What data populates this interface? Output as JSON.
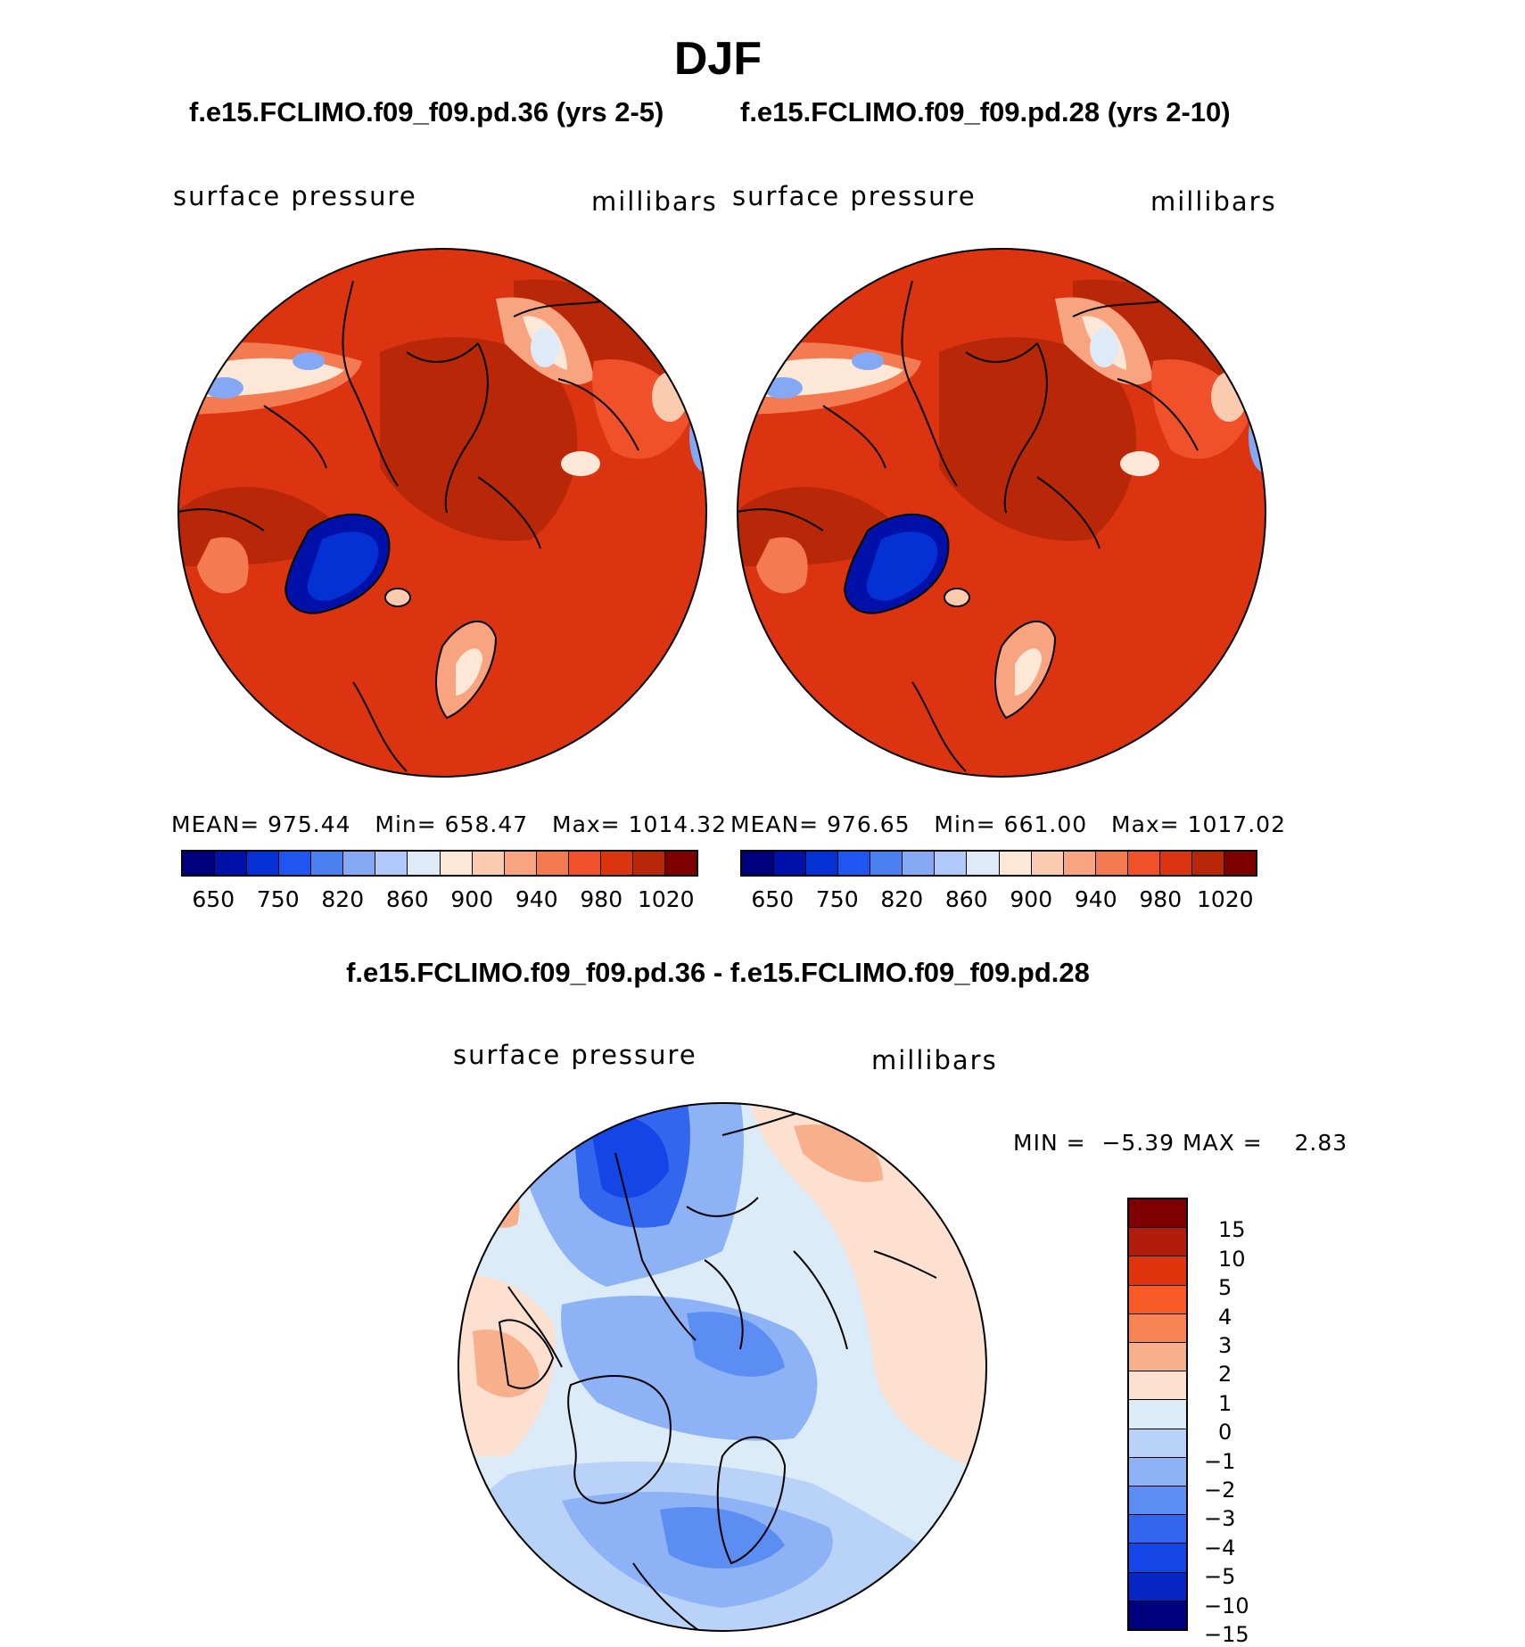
{
  "page": {
    "main_title": "DJF"
  },
  "panels": [
    {
      "case_title": "f.e15.FCLIMO.f09_f09.pd.36 (yrs 2-5)",
      "variable": "surface pressure",
      "units": "millibars",
      "stats": {
        "mean_label": "MEAN=",
        "mean": "975.44",
        "min_label": "Min=",
        "min": "658.47",
        "max_label": "Max=",
        "max": "1014.32"
      }
    },
    {
      "case_title": "f.e15.FCLIMO.f09_f09.pd.28 (yrs 2-10)",
      "variable": "surface pressure",
      "units": "millibars",
      "stats": {
        "mean_label": "MEAN=",
        "mean": "976.65",
        "min_label": "Min=",
        "min": "661.00",
        "max_label": "Max=",
        "max": "1017.02"
      }
    }
  ],
  "diff_panel": {
    "title": "f.e15.FCLIMO.f09_f09.pd.36 - f.e15.FCLIMO.f09_f09.pd.28",
    "variable": "surface pressure",
    "units": "millibars",
    "min_label": "MIN =",
    "min": "−5.39",
    "max_label": "MAX =",
    "max": "2.83"
  },
  "chart_data": [
    {
      "type": "heatmap",
      "projection": "polar stereographic (north)",
      "title": "f.e15.FCLIMO.f09_f09.pd.36 (yrs 2-5)",
      "variable": "surface pressure",
      "units": "millibars",
      "mean": 975.44,
      "min": 658.47,
      "max": 1014.32,
      "colorbar_levels": [
        "650",
        "750",
        "820",
        "860",
        "900",
        "940",
        "980",
        "1020"
      ],
      "colors": [
        "#00007f",
        "#0010a8",
        "#0530d4",
        "#1f55f0",
        "#4a80f0",
        "#85a8f4",
        "#b0c8fa",
        "#dfeaf8",
        "#fde8d8",
        "#fbcbb0",
        "#f8a480",
        "#f47a52",
        "#f0502a",
        "#dc3410",
        "#b82808",
        "#7f0000"
      ]
    },
    {
      "type": "heatmap",
      "projection": "polar stereographic (north)",
      "title": "f.e15.FCLIMO.f09_f09.pd.28 (yrs 2-10)",
      "variable": "surface pressure",
      "units": "millibars",
      "mean": 976.65,
      "min": 661.0,
      "max": 1017.02,
      "colorbar_levels": [
        "650",
        "750",
        "820",
        "860",
        "900",
        "940",
        "980",
        "1020"
      ],
      "colors": [
        "#00007f",
        "#0010a8",
        "#0530d4",
        "#1f55f0",
        "#4a80f0",
        "#85a8f4",
        "#b0c8fa",
        "#dfeaf8",
        "#fde8d8",
        "#fbcbb0",
        "#f8a480",
        "#f47a52",
        "#f0502a",
        "#dc3410",
        "#b82808",
        "#7f0000"
      ]
    },
    {
      "type": "heatmap",
      "projection": "polar stereographic (north)",
      "title": "f.e15.FCLIMO.f09_f09.pd.36 - f.e15.FCLIMO.f09_f09.pd.28",
      "variable": "surface pressure",
      "units": "millibars",
      "min": -5.39,
      "max": 2.83,
      "colorbar_levels": [
        "15",
        "10",
        "5",
        "4",
        "3",
        "2",
        "1",
        "0",
        "−1",
        "−2",
        "−3",
        "−4",
        "−5",
        "−10",
        "−15"
      ],
      "colors": [
        "#7f0000",
        "#b21c0c",
        "#e0340e",
        "#f85a26",
        "#f88454",
        "#f8b08c",
        "#fde0d0",
        "#dcebf8",
        "#b8d2f8",
        "#8eb2f6",
        "#5c8df2",
        "#3366ee",
        "#1445e6",
        "#0526c2",
        "#00007f"
      ]
    }
  ]
}
